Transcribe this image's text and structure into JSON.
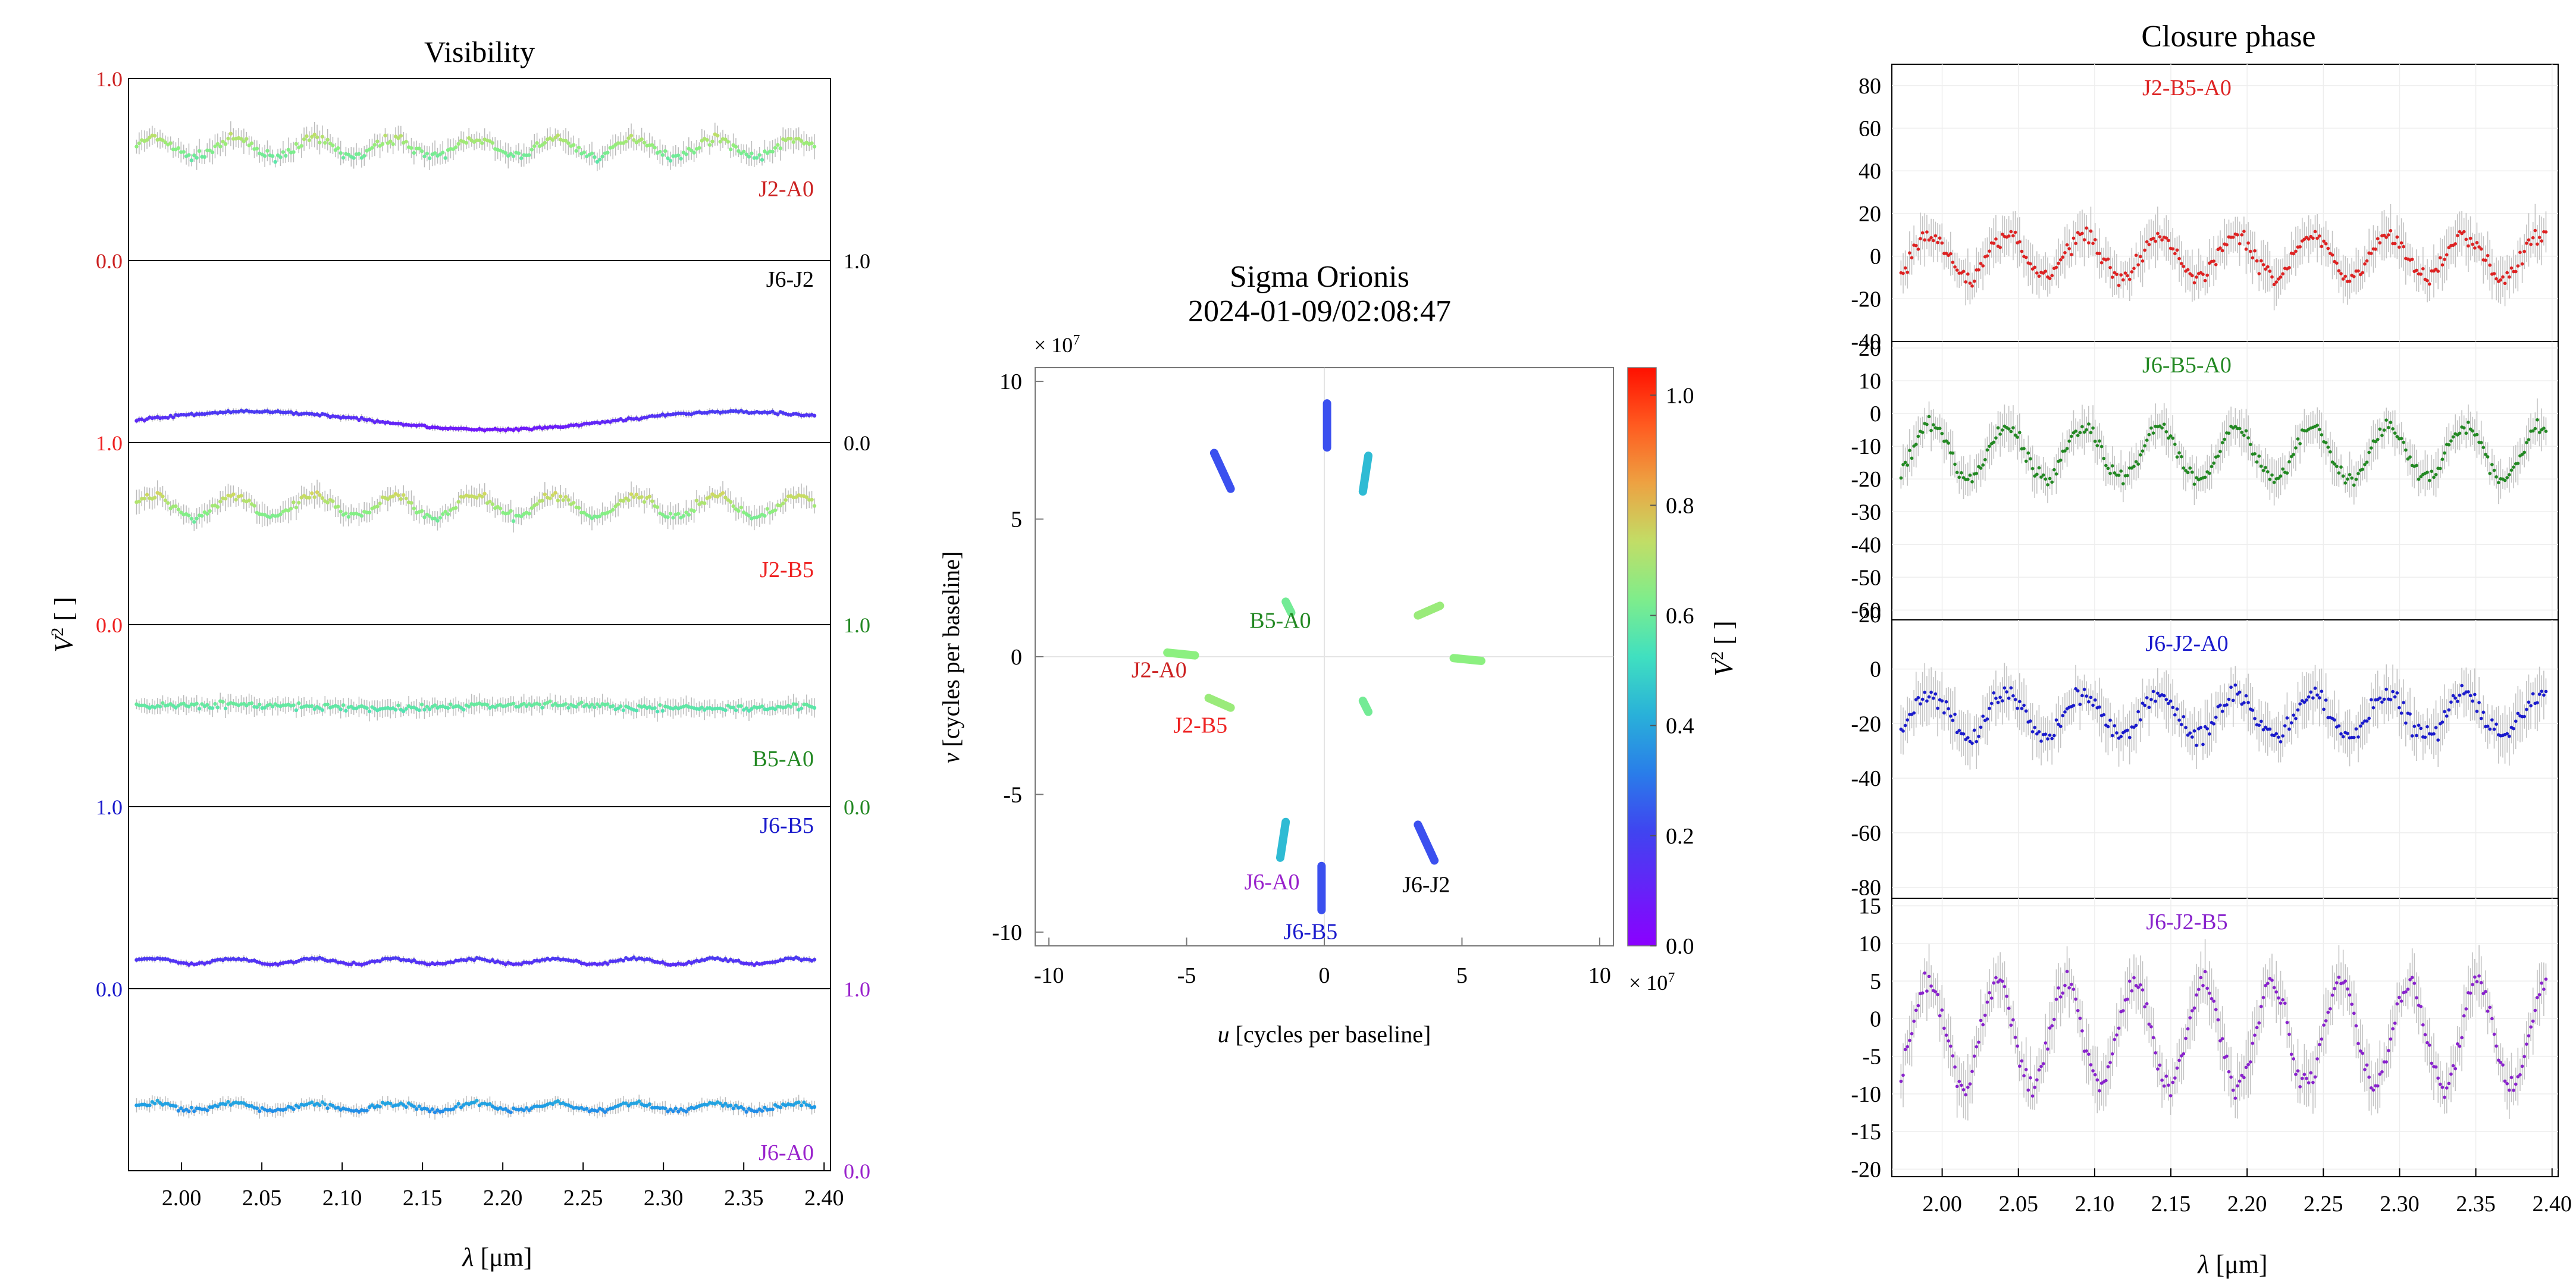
{
  "visibility": {
    "title": "Visibility",
    "ylabel_main": "V",
    "ylabel_sup": "2",
    "ylabel_unit": " [ ]",
    "xlabel_sym": "λ",
    "xlabel_unit": " [μm]",
    "x_ticks": [
      "2.00",
      "2.05",
      "2.10",
      "2.15",
      "2.20",
      "2.25",
      "2.30",
      "2.35",
      "2.40"
    ],
    "xlim": [
      1.967,
      2.404
    ],
    "panels": [
      {
        "baseline": "J2-A0",
        "color": "#cc2222",
        "axis_side": "left",
        "ylim": [
          0.0,
          1.0
        ],
        "tick_labels": [
          "1.0",
          "0.0"
        ],
        "base_value": 0.62,
        "amplitude": 0.05,
        "period": 0.05,
        "noise": 0.05
      },
      {
        "baseline": "J6-J2",
        "color": "#000000",
        "axis_side": "right",
        "ylim": [
          0.0,
          1.0
        ],
        "tick_labels": [
          "1.0",
          "0.0"
        ],
        "base_value": 0.12,
        "amplitude": 0.05,
        "period": 0.3,
        "noise": 0.015
      },
      {
        "baseline": "J2-B5",
        "color": "#ee2222",
        "axis_side": "left",
        "ylim": [
          0.0,
          1.0
        ],
        "tick_labels": [
          "1.0",
          "0.0"
        ],
        "base_value": 0.65,
        "amplitude": 0.06,
        "period": 0.05,
        "noise": 0.05
      },
      {
        "baseline": "B5-A0",
        "color": "#228822",
        "axis_side": "right",
        "ylim": [
          0.0,
          1.0
        ],
        "tick_labels": [
          "1.0",
          "0.0"
        ],
        "base_value": 0.55,
        "amplitude": 0.01,
        "period": 0.2,
        "noise": 0.04
      },
      {
        "baseline": "J6-B5",
        "color": "#1a1acc",
        "axis_side": "left",
        "ylim": [
          0.0,
          1.0
        ],
        "tick_labels": [
          "1.0",
          "0.0"
        ],
        "base_value": 0.15,
        "amplitude": 0.015,
        "period": 0.05,
        "noise": 0.015
      },
      {
        "baseline": "J6-A0",
        "color": "#9922cc",
        "axis_side": "right",
        "ylim": [
          0.0,
          1.0
        ],
        "tick_labels": [
          "1.0",
          "0.0"
        ],
        "base_value": 0.35,
        "amplitude": 0.02,
        "period": 0.05,
        "noise": 0.03
      }
    ]
  },
  "uv": {
    "title_line1": "Sigma Orionis",
    "title_line2": "2024-01-09/02:08:47",
    "xlabel_sym": "u",
    "xlabel_unit": " [cycles per baseline]",
    "ylabel_sym": "v",
    "ylabel_unit": " [cycles per baseline]",
    "exp_label": "× 10",
    "exp_sup": "7",
    "x_ticks": [
      "-10",
      "-5",
      "0",
      "5",
      "10"
    ],
    "y_ticks": [
      "10",
      "5",
      "0",
      "-5",
      "-10"
    ],
    "lim": [
      -10.5,
      10.5
    ],
    "colorbar_label_main": "V",
    "colorbar_label_sup": "2",
    "colorbar_label_unit": " [ ]",
    "colorbar_ticks": [
      "1.0",
      "0.8",
      "0.6",
      "0.4",
      "0.2",
      "0.0"
    ],
    "colorbar_range": [
      0.0,
      1.05
    ],
    "tracks": [
      {
        "u1": 0.1,
        "v1": 9.2,
        "u2": 0.1,
        "v2": 7.6,
        "value": 0.22
      },
      {
        "u1": -0.1,
        "v1": -7.6,
        "u2": -0.1,
        "v2": -9.2,
        "value": 0.22
      },
      {
        "u1": -4.0,
        "v1": 7.4,
        "u2": -3.4,
        "v2": 6.1,
        "value": 0.22
      },
      {
        "u1": 3.4,
        "v1": -6.1,
        "u2": 4.0,
        "v2": -7.4,
        "value": 0.22
      },
      {
        "u1": 1.6,
        "v1": 7.3,
        "u2": 1.4,
        "v2": 6.0,
        "value": 0.42
      },
      {
        "u1": -1.6,
        "v1": -7.3,
        "u2": -1.4,
        "v2": -6.0,
        "value": 0.42
      },
      {
        "u1": -1.4,
        "v1": 2.0,
        "u2": -1.2,
        "v2": 1.6,
        "value": 0.58
      },
      {
        "u1": 1.4,
        "v1": -1.6,
        "u2": 1.6,
        "v2": -2.0,
        "value": 0.58
      },
      {
        "u1": 3.4,
        "v1": 1.5,
        "u2": 4.2,
        "v2": 1.85,
        "value": 0.64
      },
      {
        "u1": -4.2,
        "v1": -1.5,
        "u2": -3.4,
        "v2": -1.85,
        "value": 0.64
      },
      {
        "u1": 4.7,
        "v1": -0.05,
        "u2": 5.7,
        "v2": -0.15,
        "value": 0.62
      },
      {
        "u1": -5.7,
        "v1": 0.15,
        "u2": -4.7,
        "v2": 0.05,
        "value": 0.62
      }
    ],
    "labels": [
      {
        "text": "B5-A0",
        "u": -1.6,
        "v": 1.05,
        "color": "#228822"
      },
      {
        "text": "J2-A0",
        "u": -6.0,
        "v": -0.75,
        "color": "#cc2222"
      },
      {
        "text": "J2-B5",
        "u": -4.5,
        "v": -2.75,
        "color": "#ee2222"
      },
      {
        "text": "J6-A0",
        "u": -1.9,
        "v": -8.45,
        "color": "#9922cc"
      },
      {
        "text": "J6-J2",
        "u": 3.7,
        "v": -8.55,
        "color": "#000000"
      },
      {
        "text": "J6-B5",
        "u": -0.5,
        "v": -10.25,
        "color": "#1a1acc"
      }
    ]
  },
  "closure": {
    "title": "Closure phase",
    "xlabel_sym": "λ",
    "xlabel_unit": " [μm]",
    "x_ticks": [
      "2.00",
      "2.05",
      "2.10",
      "2.15",
      "2.20",
      "2.25",
      "2.30",
      "2.35",
      "2.40"
    ],
    "xlim": [
      1.967,
      2.404
    ],
    "panels": [
      {
        "triplet": "J2-B5-A0",
        "color": "#dd2222",
        "ylim": [
          -40,
          90
        ],
        "y_ticks": [
          80,
          60,
          40,
          20,
          0,
          -20,
          -40
        ],
        "base_value": 0,
        "amplitude": 10,
        "period": 0.05,
        "noise": 7
      },
      {
        "triplet": "J6-B5-A0",
        "color": "#228822",
        "ylim": [
          -63,
          22
        ],
        "y_ticks": [
          20,
          10,
          0,
          -10,
          -20,
          -30,
          -40,
          -50,
          -60
        ],
        "base_value": -12,
        "amplitude": 8,
        "period": 0.05,
        "noise": 4
      },
      {
        "triplet": "J6-J2-A0",
        "color": "#1a1acc",
        "ylim": [
          -84,
          18
        ],
        "y_ticks": [
          20,
          0,
          -20,
          -40,
          -60,
          -80
        ],
        "base_value": -17,
        "amplitude": 8,
        "period": 0.05,
        "noise": 6
      },
      {
        "triplet": "J6-J2-B5",
        "color": "#8822cc",
        "ylim": [
          -21,
          16
        ],
        "y_ticks": [
          15,
          10,
          5,
          0,
          -5,
          -10,
          -15,
          -20
        ],
        "base_value": -2,
        "amplitude": 7,
        "period": 0.045,
        "noise": 2.5
      }
    ]
  }
}
